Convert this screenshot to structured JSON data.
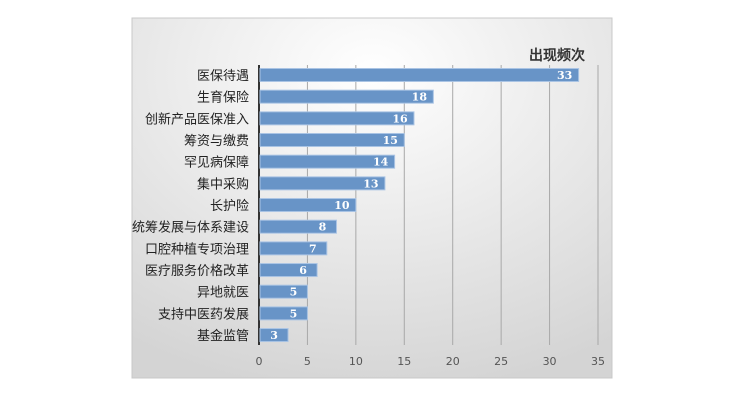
{
  "chart_data": {
    "type": "bar",
    "orientation": "horizontal",
    "title": "出现频次",
    "categories": [
      "医保待遇",
      "生育保险",
      "创新产品医保准入",
      "筹资与缴费",
      "罕见病保障",
      "集中采购",
      "长护险",
      "统筹发展与体系建设",
      "口腔种植专项治理",
      "医疗服务价格改革",
      "异地就医",
      "支持中医药发展",
      "基金监管"
    ],
    "values": [
      33,
      18,
      16,
      15,
      14,
      13,
      10,
      8,
      7,
      6,
      5,
      5,
      3
    ],
    "xlim": [
      0,
      35
    ],
    "xticks": [
      0,
      5,
      10,
      15,
      20,
      25,
      30,
      35
    ],
    "xlabel": "",
    "ylabel": "",
    "grid": "vertical",
    "legend": "none",
    "data_labels": "inside-end",
    "colors": {
      "bar": "#6894c7",
      "bar_edge": "#aac4e4",
      "label": "#ffffff",
      "grid": "#a8a8a8",
      "axis": "#333333"
    }
  }
}
